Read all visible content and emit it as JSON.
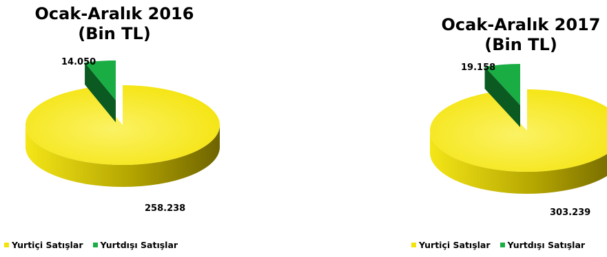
{
  "colors": {
    "domestic": "#f4e30a",
    "domestic_light": "#fbf264",
    "domestic_side_dark": "#6e6300",
    "domestic_side_light": "#f4e617",
    "export": "#19ad44",
    "export_dark": "#0a5a22",
    "label": "#000000"
  },
  "chart_data": [
    {
      "type": "pie",
      "title_line1": "Ocak-Aralık 2016",
      "title_line2": "(Bin TL)",
      "categories": [
        "Yurtiçi Satışlar",
        "Yurtdışı Satışlar"
      ],
      "values": [
        258238,
        14050
      ],
      "value_labels": [
        "258.238",
        "14.050"
      ],
      "exploded": [
        false,
        true
      ],
      "legend_position": "bottom",
      "legend": [
        "Yurtiçi Satışlar",
        "Yurtdışı Satışlar"
      ]
    },
    {
      "type": "pie",
      "title_line1": "Ocak-Aralık 2017",
      "title_line2": "(Bin TL)",
      "categories": [
        "Yurtiçi Satışlar",
        "Yurtdışı Satışlar"
      ],
      "values": [
        303239,
        19158
      ],
      "value_labels": [
        "303.239",
        "19.158"
      ],
      "exploded": [
        false,
        true
      ],
      "legend_position": "bottom",
      "legend": [
        "Yurtiçi Satışlar",
        "Yurtdışı Satışlar"
      ]
    }
  ]
}
